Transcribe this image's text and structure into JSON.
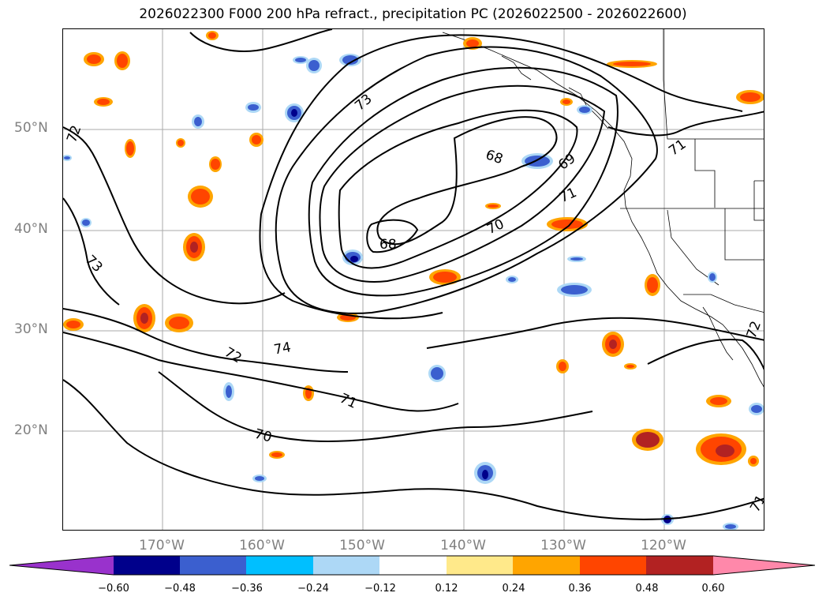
{
  "title": "2026022300 F000 200 hPa refract., precipitation PC (2026022500 - 2026022600)",
  "latitude_labels": [
    "50°N",
    "40°N",
    "30°N",
    "20°N"
  ],
  "longitude_labels": [
    "170°W",
    "160°W",
    "150°W",
    "140°W",
    "130°W",
    "120°W"
  ],
  "contour_labels": [
    "72",
    "73",
    "73",
    "68",
    "69",
    "71",
    "71",
    "68",
    "70",
    "74",
    "72",
    "71",
    "70",
    "72",
    "71"
  ],
  "colorbar": {
    "ticks": [
      "−0.60",
      "−0.48",
      "−0.36",
      "−0.24",
      "−0.12",
      "0.12",
      "0.24",
      "0.36",
      "0.48",
      "0.60"
    ],
    "colors": [
      "#9932cc",
      "#00008b",
      "#3b5fcf",
      "#00bfff",
      "#add8f6",
      "#ffffff",
      "#ffe98a",
      "#ffa500",
      "#ff4500",
      "#b22222",
      "#ff88aa"
    ]
  },
  "shading_colors": {
    "neg_light": "#add8f6",
    "neg_mid": "#00bfff",
    "neg_strong": "#3b5fcf",
    "neg_max": "#00008b",
    "pos_light": "#ffe98a",
    "pos_mid": "#ffa500",
    "pos_strong": "#ff4500",
    "pos_max": "#b22222"
  }
}
